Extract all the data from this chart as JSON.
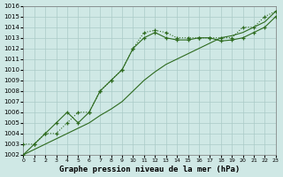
{
  "title": "Graphe pression niveau de la mer (hPa)",
  "hours": [
    0,
    1,
    2,
    3,
    4,
    5,
    6,
    7,
    8,
    9,
    10,
    11,
    12,
    13,
    14,
    15,
    16,
    17,
    18,
    19,
    20,
    21,
    22,
    23
  ],
  "series_dotted_markers": [
    1003,
    1003,
    1004,
    1004,
    1005,
    1006,
    1006,
    1008,
    1009,
    1010,
    1012,
    1013.5,
    1013.7,
    1013.5,
    1013,
    1013,
    1013,
    1013,
    1013,
    1013,
    1014,
    1014,
    1015,
    1015.5
  ],
  "series_solid_markers": [
    1002,
    1003,
    1004,
    1005,
    1006,
    1005,
    1006,
    1008,
    1009,
    1010,
    1012,
    1013,
    1013.5,
    1013,
    1012.8,
    1012.8,
    1013,
    1013,
    1012.7,
    1012.8,
    1013,
    1013.5,
    1014,
    1015
  ],
  "series_linear": [
    1002,
    1002.5,
    1003,
    1003.5,
    1004,
    1004.5,
    1005,
    1005.7,
    1006.3,
    1007,
    1008,
    1009,
    1009.8,
    1010.5,
    1011,
    1011.5,
    1012,
    1012.5,
    1013,
    1013.2,
    1013.5,
    1014,
    1014.5,
    1015.5
  ],
  "line_color": "#2d6a1e",
  "bg_color": "#cfe8e5",
  "grid_color": "#aacbc7",
  "ylim": [
    1002,
    1016
  ],
  "xlim_min": 0,
  "xlim_max": 23
}
